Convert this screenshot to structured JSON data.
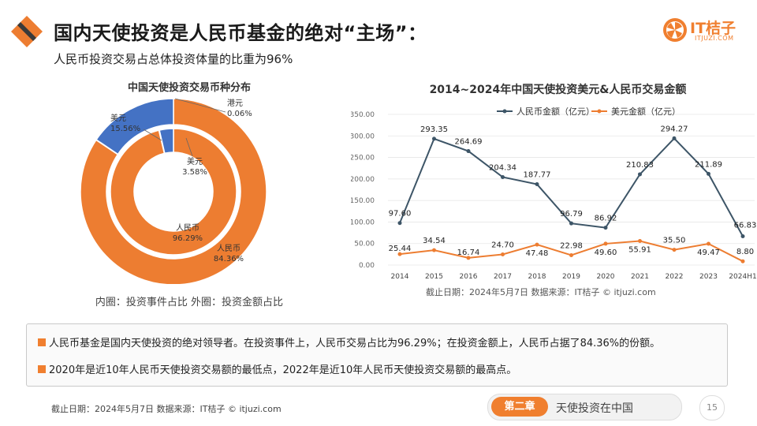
{
  "header": {
    "title": "国内天使投资是人民币基金的绝对“主场”：",
    "subtitle": "人民币投资交易占总体投资体量的比重为96%",
    "brand_name": "IT桔子",
    "brand_url": "ITJUZI.COM"
  },
  "left_chart": {
    "title": "中国天使投资交易币种分布",
    "note": "内圈：投资事件占比    外圈：投资金额占比"
  },
  "right_chart": {
    "title": "2014~2024年中国天使投资美元&人民币交易金额",
    "source": "截止日期：2024年5月7日    数据来源：IT桔子 © itjuzi.com"
  },
  "chart_data": [
    {
      "type": "pie",
      "title": "中国天使投资交易币种分布",
      "rings": [
        {
          "name": "外圈：投资金额占比",
          "slices": [
            {
              "label": "人民币",
              "value": 84.36,
              "display": "84.36%",
              "color": "#ed7d31"
            },
            {
              "label": "美元",
              "value": 15.56,
              "display": "15.56%",
              "color": "#4472c4"
            },
            {
              "label": "港元",
              "value": 0.06,
              "display": "0.06%",
              "color": "#a5a5a5"
            }
          ]
        },
        {
          "name": "内圈：投资事件占比",
          "slices": [
            {
              "label": "人民币",
              "value": 96.29,
              "display": "96.29%",
              "color": "#ed7d31"
            },
            {
              "label": "美元",
              "value": 3.58,
              "display": "3.58%",
              "color": "#4472c4"
            },
            {
              "label": "港元",
              "value": 0.13,
              "display": "",
              "color": "#a5a5a5"
            }
          ]
        }
      ]
    },
    {
      "type": "line",
      "title": "2014~2024年中国天使投资美元&人民币交易金额",
      "categories": [
        "2014",
        "2015",
        "2016",
        "2017",
        "2018",
        "2019",
        "2020",
        "2021",
        "2022",
        "2023",
        "2024H1"
      ],
      "ylim": [
        0,
        350
      ],
      "yticks": [
        "0.00",
        "50.00",
        "100.00",
        "150.00",
        "200.00",
        "250.00",
        "300.00",
        "350.00"
      ],
      "legend_position": "top",
      "series": [
        {
          "name": "人民币金额（亿元）",
          "color": "#3d5567",
          "values": [
            97.6,
            293.35,
            264.69,
            204.34,
            187.77,
            96.79,
            86.92,
            210.83,
            294.27,
            211.89,
            66.83
          ],
          "labels": [
            "97.60",
            "293.35",
            "264.69",
            "204.34",
            "187.77",
            "96.79",
            "86.92",
            "210.83",
            "294.27",
            "211.89",
            "66.83"
          ]
        },
        {
          "name": "美元金额（亿元）",
          "color": "#ed7d31",
          "values": [
            25.44,
            34.54,
            16.74,
            24.7,
            47.48,
            22.98,
            49.6,
            55.91,
            35.5,
            49.47,
            8.8
          ],
          "labels": [
            "25.44",
            "34.54",
            "16.74",
            "24.70",
            "47.48",
            "22.98",
            "49.60",
            "55.91",
            "35.50",
            "49.47",
            "8.80"
          ]
        }
      ]
    }
  ],
  "summary": {
    "line1": "人民币基金是国内天使投资的绝对领导者。在投资事件上，人民币交易占比为96.29%；在投资金额上，人民币占据了84.36%的份额。",
    "line2": "2020年是近10年人民币天使投资交易额的最低点，2022年是近10年人民币天使投资交易额的最高点。"
  },
  "footer": {
    "source": "截止日期：2024年5月7日    数据来源：IT桔子 © itjuzi.com",
    "chapter_tag": "第二章",
    "chapter_name": "天使投资在中国",
    "page_number": "15"
  }
}
